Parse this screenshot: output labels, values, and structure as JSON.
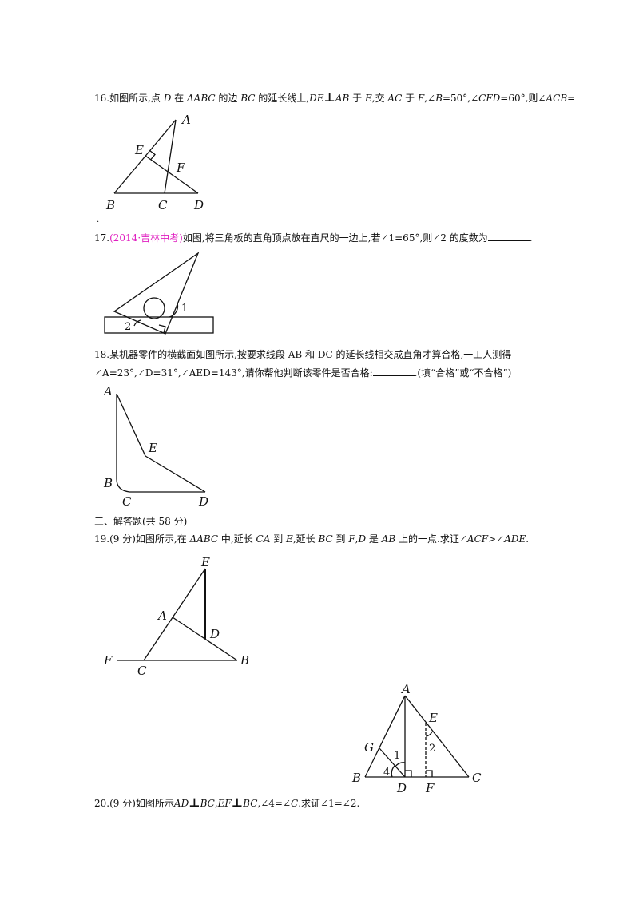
{
  "q16": {
    "number": "16.",
    "t1": "如图所示,点 ",
    "D": "D",
    "t2": " 在 ",
    "ABC": "ΔABC",
    "t3": " 的边 ",
    "BC": "BC",
    "t4": " 的延长线上,",
    "DE": "DE",
    "perp": "⊥",
    "AB": "AB",
    "t5": " 于 ",
    "E": "E",
    "t6": ",交 ",
    "AC": "AC",
    "t7": " 于 ",
    "F": "F",
    "t8": ",∠",
    "B": "B",
    "t9": "=50°,∠",
    "CFD": "CFD",
    "t10": "=60°,则∠",
    "ACB": "ACB",
    "t11": "=",
    "labels": {
      "A": "A",
      "E": "E",
      "F": "F",
      "B": "B",
      "C": "C",
      "D": "D"
    }
  },
  "q16_dot": ".",
  "q17": {
    "number": "17.",
    "source": "(2014·吉林中考)",
    "text": "如图,将三角板的直角顶点放在直尺的一边上,若∠1=65°,则∠2 的度数为",
    "end": ".",
    "labels": {
      "one": "1",
      "two": "2"
    }
  },
  "q18": {
    "line1": "18.某机器零件的横截面如图所示,按要求线段 AB 和 DC 的延长线相交成直角才算合格,一工人测得",
    "line2_a": "∠A=23°,∠D=31°,∠AED=143°,",
    "line2_b": "请你帮他判断该零件是否合格:",
    "line2_c": ".(填“合格”或“不合格”)",
    "labels": {
      "A": "A",
      "E": "E",
      "B": "B",
      "C": "C",
      "D": "D"
    }
  },
  "section3": "三、解答题(共 58 分)",
  "q19": {
    "text_a": "19.(9 分)如图所示,在 ",
    "ABC": "ΔABC",
    "text_b": " 中,延长 ",
    "CA": "CA",
    "text_c": " 到 ",
    "E": "E",
    "text_d": ",延长 ",
    "BC": "BC",
    "text_e": " 到 ",
    "F": "F",
    "text_f": ",",
    "D": "D",
    "text_g": " 是 ",
    "AB": "AB",
    "text_h": " 上的一点.求证∠",
    "ACF": "ACF",
    "text_i": ">∠",
    "ADE": "ADE",
    "text_j": ".",
    "labels": {
      "E": "E",
      "A": "A",
      "D": "D",
      "F": "F",
      "C": "C",
      "B": "B"
    }
  },
  "q20": {
    "text_a": "20.(9 分)如图所示",
    "AD": "AD",
    "perp1": "⊥",
    "BC1": "BC",
    "comma1": ",",
    "EF": "EF",
    "perp2": "⊥",
    "BC2": "BC",
    "text_b": ",∠4=∠",
    "C": "C",
    "text_c": ".求证∠1=∠2.",
    "labels": {
      "A": "A",
      "E": "E",
      "G": "G",
      "one": "1",
      "two": "2",
      "four": "4",
      "B": "B",
      "D": "D",
      "F": "F",
      "C": "C"
    }
  }
}
